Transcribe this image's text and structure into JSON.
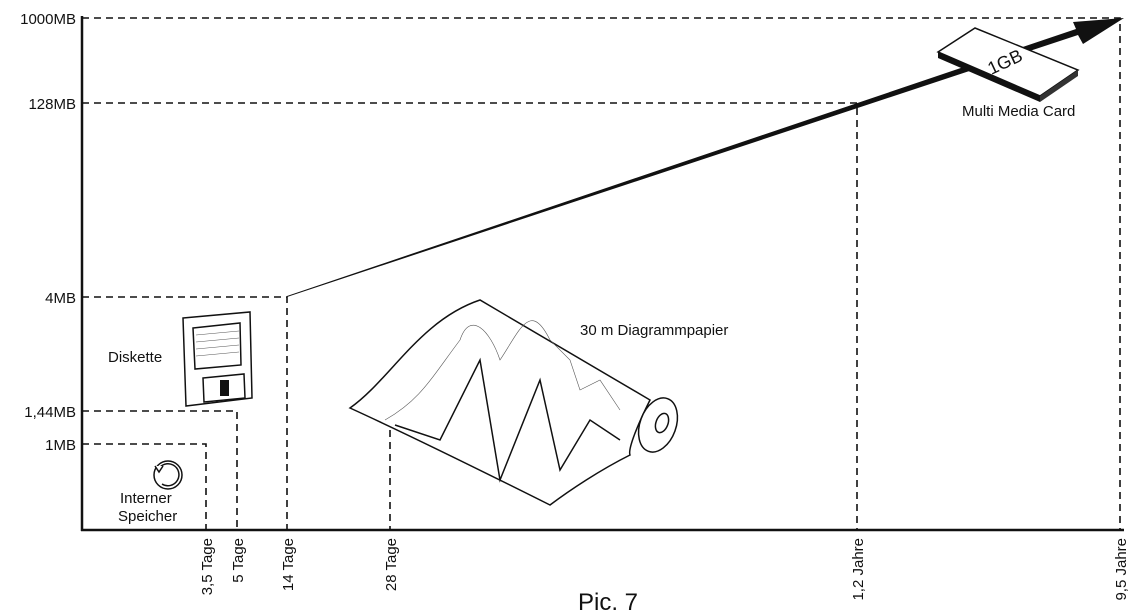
{
  "y_labels": [
    "1000MB",
    "128MB",
    "4MB",
    "1,44MB",
    "1MB"
  ],
  "x_labels": [
    "3,5 Tage",
    "5 Tage",
    "14 Tage",
    "28 Tage",
    "1,2 Jahre",
    "9,5 Jahre"
  ],
  "annotations": {
    "internal_memory": [
      "Interner",
      "Speicher"
    ],
    "floppy": "Diskette",
    "paper": "30 m Diagrammpapier",
    "card": "Multi Media Card",
    "card_label": "1GB"
  },
  "caption": "Pic. 7"
}
